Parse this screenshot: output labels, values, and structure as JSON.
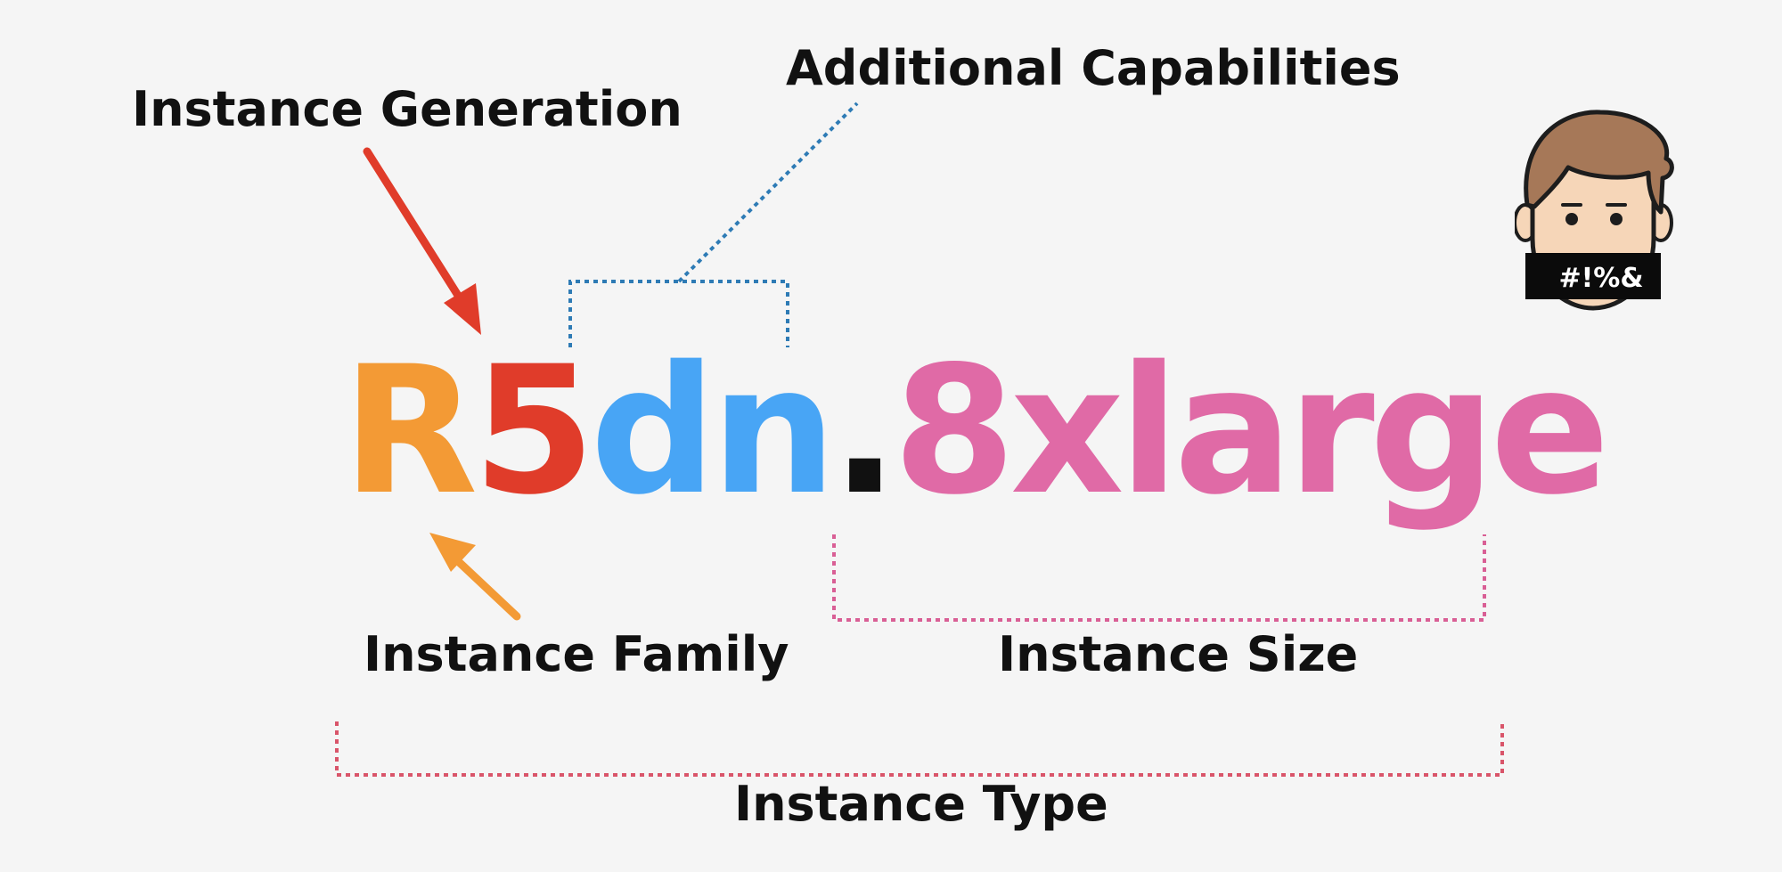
{
  "labels": {
    "generation": "Instance Generation",
    "capabilities": "Additional Capabilities",
    "family": "Instance Family",
    "size": "Instance Size",
    "type": "Instance Type"
  },
  "instance_name": {
    "family": "R",
    "generation": "5",
    "capabilities": "dn",
    "dot": ".",
    "size": "8xlarge"
  },
  "avatar": {
    "censor_text": "#!%&"
  },
  "colors": {
    "family": "#f39a35",
    "generation": "#e03c2a",
    "capabilities": "#48a5f5",
    "size": "#e06aa6",
    "type_bracket": "#d9556a",
    "text": "#111111",
    "background": "#f5f5f5"
  }
}
